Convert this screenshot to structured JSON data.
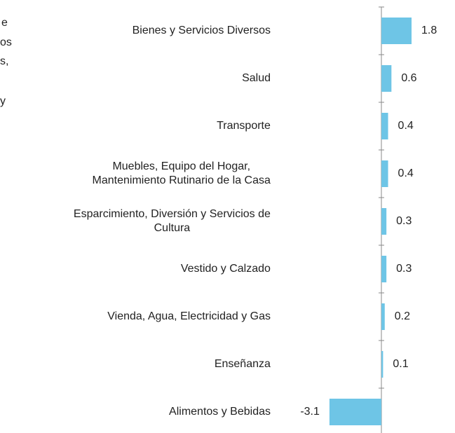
{
  "chart_data": {
    "type": "hbar",
    "categories": [
      "Bienes y Servicios  Diversos",
      "Salud",
      "Transporte",
      "Muebles, Equipo del Hogar,\nMantenimiento Rutinario de la Casa",
      "Esparcimiento, Diversión y Servicios de\nCultura",
      "Vestido y Calzado",
      "Vienda, Agua, Electricidad y Gas",
      "Enseñanza",
      "Alimentos y Bebidas"
    ],
    "values": [
      1.8,
      0.6,
      0.4,
      0.4,
      0.3,
      0.3,
      0.2,
      0.1,
      -3.1
    ],
    "color": "#6ec5e6",
    "clipped_text": [
      "e",
      "os",
      "s,",
      "y"
    ]
  }
}
